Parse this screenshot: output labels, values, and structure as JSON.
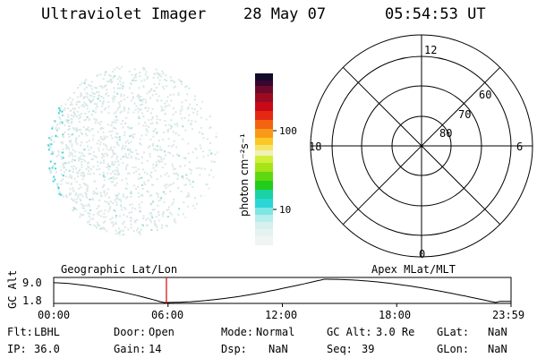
{
  "header": {
    "title": "Ultraviolet Imager",
    "date": "28 May 07",
    "time": "05:54:53 UT"
  },
  "colorbar": {
    "unit_label": "photon cm⁻²s⁻¹",
    "tick_100": "100",
    "tick_10": "10"
  },
  "polar": {
    "mlt_top": "12",
    "mlt_left": "18",
    "mlt_right": "6",
    "mlt_bottom": "0",
    "lat_60": "60",
    "lat_70": "70",
    "lat_80": "80"
  },
  "timeline": {
    "left_caption": "Geographic Lat/Lon",
    "right_caption": "Apex MLat/MLT",
    "axis_label": "GC Alt",
    "y_max": "9.0",
    "y_min": "1.8",
    "ticks": [
      "00:00",
      "06:00",
      "12:00",
      "18:00",
      "23:59"
    ],
    "marker_time_hours": 5.915
  },
  "info": {
    "row1": [
      {
        "label": "Flt:",
        "value": "LBHL"
      },
      {
        "label": "Door:",
        "value": "Open"
      },
      {
        "label": "Mode:",
        "value": "Normal"
      },
      {
        "label": "GC Alt:",
        "value": "3.0 Re"
      },
      {
        "label": "GLat:",
        "value": "NaN"
      }
    ],
    "row2": [
      {
        "label": "IP:",
        "value": "36.0"
      },
      {
        "label": "Gain:",
        "value": "14"
      },
      {
        "label": "Dsp:",
        "value": "NaN"
      },
      {
        "label": "Seq:",
        "value": "39"
      },
      {
        "label": "GLon:",
        "value": "NaN"
      }
    ]
  },
  "colors": {
    "marker": "#e00000",
    "speckle_light": "#d9e8e6",
    "speckle_cyan": "#3fd6d6"
  }
}
